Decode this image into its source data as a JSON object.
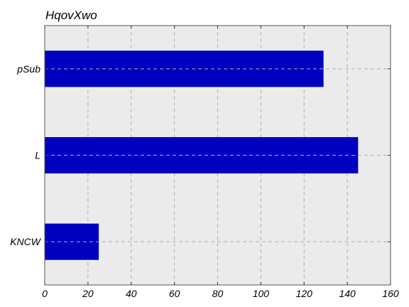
{
  "chart_data": {
    "type": "bar",
    "orientation": "horizontal",
    "title": "HqovXwo",
    "xlabel": "",
    "ylabel": "",
    "categories": [
      "KNCW",
      "L",
      "pSub"
    ],
    "values": [
      25,
      145,
      129
    ],
    "xlim": [
      0,
      160
    ],
    "xticks": [
      0,
      20,
      40,
      60,
      80,
      100,
      120,
      140,
      160
    ],
    "grid": true,
    "bar_color": "#0000c0",
    "background_color": "#ebebeb",
    "grid_color": "#b0b0b0"
  }
}
